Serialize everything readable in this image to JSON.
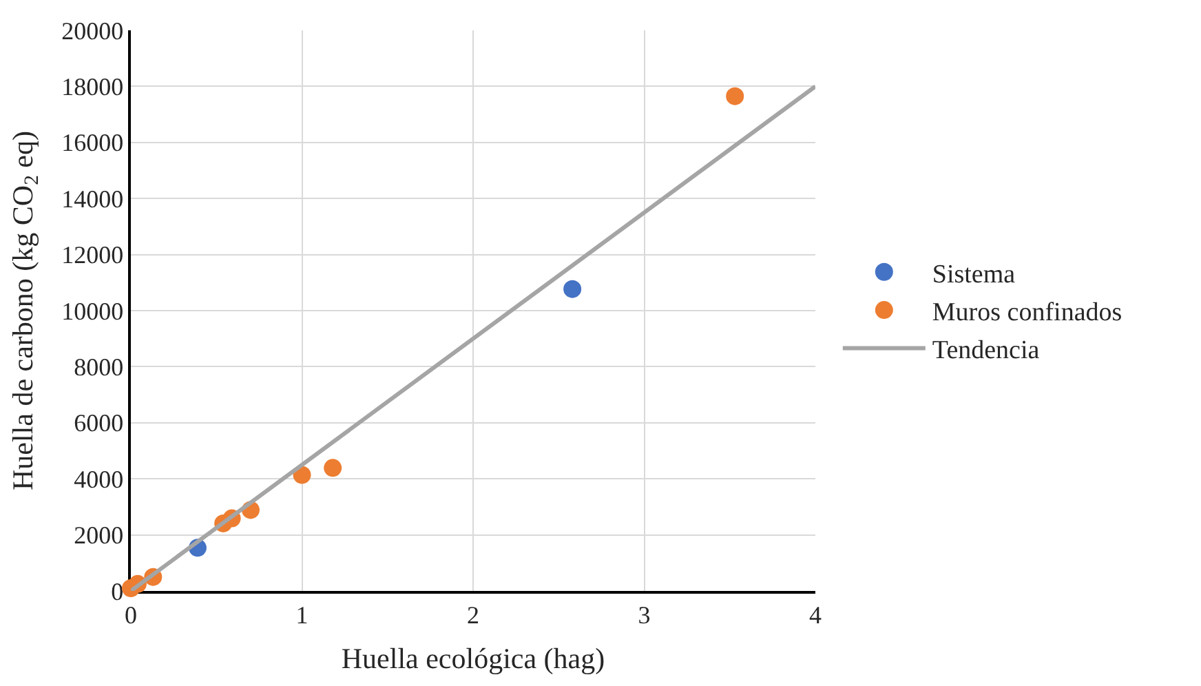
{
  "chart_data": {
    "type": "scatter",
    "xlabel": "Huella ecológica (hag)",
    "ylabel": "Huella de carbono (kg CO$_{2}$ eq)",
    "xlim": [
      0,
      4
    ],
    "xticks": [
      0,
      1,
      2,
      3,
      4
    ],
    "ylim": [
      0,
      20000
    ],
    "yticks": [
      0,
      2000,
      4000,
      6000,
      8000,
      10000,
      12000,
      14000,
      16000,
      18000,
      20000
    ],
    "grid": true,
    "legend": "right",
    "marker": "circle",
    "series": [
      {
        "name": "Sistema",
        "color": "#4472c4",
        "x": [
          0.39,
          2.58
        ],
        "values": [
          1540,
          10770
        ]
      },
      {
        "name": "Muros confinados",
        "color": "#ed7d31",
        "x": [
          0.0,
          0.04,
          0.13,
          0.54,
          0.59,
          0.7,
          1.0,
          1.18,
          3.53
        ],
        "values": [
          100,
          250,
          500,
          2410,
          2590,
          2890,
          4140,
          4390,
          17650
        ]
      },
      {
        "name": "Tendencia",
        "type": "line",
        "marker": "none",
        "color": "#a5a5a5",
        "x": [
          0,
          4
        ],
        "values": [
          0,
          18000
        ]
      }
    ]
  }
}
